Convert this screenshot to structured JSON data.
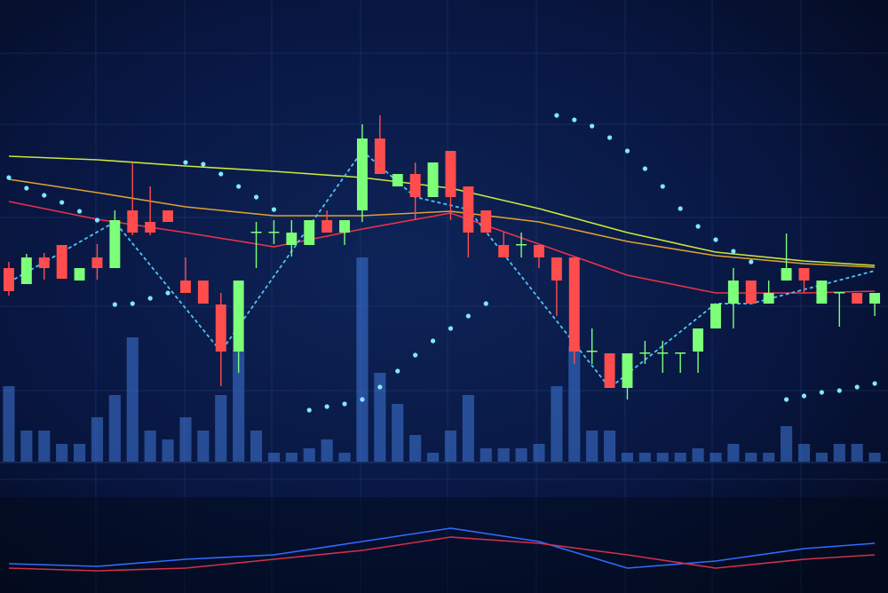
{
  "chart_data": {
    "type": "candlestick",
    "xlim": [
      -0.5,
      49.75
    ],
    "ylim": [
      0,
      668
    ],
    "y2lim": [
      -148,
      520
    ],
    "up_color": "#7dff7a",
    "down_color": "#ff4d4d",
    "x": [
      0,
      1,
      2,
      3,
      4,
      5,
      6,
      7,
      8,
      9,
      10,
      11,
      12,
      13,
      14,
      15,
      16,
      17,
      18,
      19,
      20,
      21,
      22,
      23,
      24,
      25,
      26,
      27,
      28,
      29,
      30,
      31,
      32,
      33,
      34,
      35,
      36,
      37,
      38,
      39,
      40,
      41,
      42,
      43,
      44,
      45,
      46,
      47,
      48,
      49
    ],
    "open": [
      366,
      348,
      378,
      392,
      352,
      378,
      366,
      431,
      418,
      431,
      352,
      352,
      325,
      272,
      406,
      406,
      392,
      392,
      420,
      406,
      431,
      512,
      458,
      472,
      446,
      498,
      458,
      431,
      392,
      392,
      392,
      378,
      378,
      272,
      270,
      231,
      270,
      270,
      270,
      272,
      298,
      326,
      352,
      326,
      352,
      366,
      326,
      338,
      338,
      326
    ],
    "high": [
      373,
      382,
      383,
      392,
      366,
      393,
      431,
      485,
      458,
      431,
      378,
      352,
      338,
      352,
      418,
      420,
      420,
      420,
      431,
      420,
      528,
      538,
      472,
      485,
      485,
      498,
      458,
      431,
      406,
      406,
      392,
      378,
      378,
      298,
      270,
      270,
      284,
      284,
      271,
      298,
      326,
      366,
      352,
      352,
      405,
      366,
      352,
      339,
      338,
      338
    ],
    "low": [
      335,
      348,
      353,
      354,
      352,
      353,
      366,
      403,
      403,
      418,
      338,
      326,
      233,
      248,
      366,
      393,
      379,
      392,
      406,
      392,
      418,
      472,
      458,
      420,
      446,
      420,
      378,
      406,
      378,
      378,
      366,
      312,
      258,
      258,
      231,
      218,
      258,
      248,
      248,
      248,
      298,
      298,
      326,
      326,
      352,
      338,
      326,
      300,
      326,
      312
    ],
    "close": [
      340,
      378,
      366,
      354,
      366,
      366,
      420,
      406,
      406,
      418,
      338,
      326,
      272,
      352,
      407,
      407,
      406,
      420,
      406,
      420,
      512,
      472,
      472,
      446,
      485,
      446,
      406,
      406,
      378,
      393,
      378,
      352,
      272,
      273,
      231,
      270,
      271,
      271,
      271,
      298,
      326,
      352,
      326,
      338,
      366,
      352,
      352,
      339,
      326,
      338
    ],
    "volume": {
      "color": "#3f78d8",
      "axis": "y2",
      "values": [
        85,
        35,
        35,
        20,
        20,
        50,
        75,
        140,
        35,
        25,
        50,
        35,
        75,
        125,
        35,
        10,
        10,
        15,
        25,
        10,
        230,
        100,
        65,
        30,
        10,
        35,
        75,
        15,
        15,
        15,
        20,
        85,
        130,
        35,
        35,
        10,
        10,
        10,
        10,
        15,
        10,
        20,
        10,
        10,
        40,
        20,
        10,
        20,
        20,
        10
      ]
    },
    "overlays": [
      {
        "type": "line",
        "color": "#c8e83a",
        "x": [
          0,
          5,
          10,
          15,
          20,
          25,
          30,
          35,
          40,
          45,
          49
        ],
        "values": [
          492,
          488,
          481,
          475,
          468,
          456,
          433,
          406,
          384,
          374,
          369
        ]
      },
      {
        "type": "line",
        "color": "#e0a030",
        "x": [
          0,
          5,
          10,
          15,
          20,
          25,
          30,
          35,
          40,
          45,
          49
        ],
        "values": [
          466,
          451,
          435,
          425,
          425,
          430,
          418,
          396,
          380,
          371,
          367
        ]
      },
      {
        "type": "line",
        "color": "#e8324a",
        "x": [
          0,
          5,
          10,
          15,
          20,
          25,
          30,
          35,
          40,
          45,
          49
        ],
        "values": [
          441,
          421,
          406,
          390,
          410,
          428,
          393,
          358,
          338,
          338,
          340
        ]
      },
      {
        "type": "line",
        "color": "#4fc3f7",
        "dashed": true,
        "x": [
          0,
          6,
          12,
          20,
          23,
          26,
          34,
          40,
          42,
          49
        ],
        "values": [
          350,
          418,
          272,
          498,
          446,
          432,
          231,
          326,
          326,
          363
        ]
      },
      {
        "type": "line",
        "color": "#2f6bff",
        "x": [
          0,
          5,
          10,
          15,
          20,
          25,
          30,
          35,
          40,
          45,
          49
        ],
        "values": [
          33,
          30,
          38,
          43,
          58,
          73,
          58,
          28,
          36,
          50,
          56
        ]
      },
      {
        "type": "line",
        "color": "#d0304a",
        "x": [
          0,
          5,
          10,
          15,
          20,
          25,
          30,
          35,
          40,
          45,
          49
        ],
        "values": [
          28,
          25,
          28,
          38,
          48,
          63,
          56,
          43,
          28,
          38,
          43
        ]
      },
      {
        "type": "dots",
        "color": "#7fe8ff",
        "values": [
          468,
          456,
          448,
          440,
          430,
          420,
          325,
          326,
          332,
          338,
          485,
          483,
          472,
          458,
          446,
          432,
          null,
          206,
          210,
          213,
          218,
          232,
          250,
          268,
          284,
          298,
          312,
          326,
          null,
          null,
          null,
          538,
          533,
          526,
          513,
          498,
          478,
          458,
          433,
          413,
          398,
          385,
          373,
          null,
          218,
          222,
          226,
          228,
          232,
          236
        ]
      }
    ]
  }
}
